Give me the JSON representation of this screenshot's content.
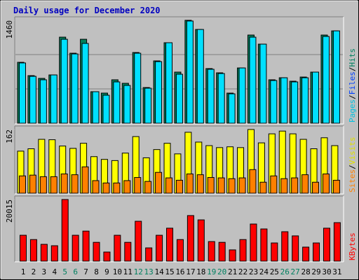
{
  "chart_data": [
    {
      "type": "bar",
      "title": "Daily usage for December 2020",
      "ylim": [
        0,
        1460
      ],
      "yticks": [
        1460
      ],
      "y_label_parts": [
        {
          "text": "Pages",
          "color": "#00c0e0"
        },
        {
          "text": "/",
          "color": "#000000"
        },
        {
          "text": "Files",
          "color": "#0040ff"
        },
        {
          "text": "/",
          "color": "#000000"
        },
        {
          "text": "Hits",
          "color": "#008060"
        }
      ],
      "series": [
        {
          "name": "Hits",
          "color": "#00805c",
          "values": [
            864,
            675,
            636,
            685,
            1221,
            993,
            1191,
            447,
            427,
            616,
            566,
            1003,
            506,
            884,
            1142,
            725,
            1460,
            1330,
            775,
            715,
            427,
            784,
            1251,
            1122,
            616,
            645,
            596,
            655,
            725,
            1251,
            1310
          ]
        },
        {
          "name": "Pages",
          "color": "#00e0ff",
          "values": [
            855,
            665,
            616,
            685,
            1191,
            983,
            1132,
            447,
            397,
            586,
            536,
            993,
            497,
            874,
            1142,
            695,
            1450,
            1330,
            765,
            705,
            417,
            784,
            1221,
            1122,
            606,
            645,
            586,
            645,
            725,
            1231,
            1310
          ]
        }
      ]
    },
    {
      "type": "bar",
      "ylim": [
        0,
        162
      ],
      "yticks": [
        162
      ],
      "y_label_parts": [
        {
          "text": "Sites",
          "color": "#ff8000"
        },
        {
          "text": "/",
          "color": "#000000"
        },
        {
          "text": "Visits",
          "color": "#e0e000"
        }
      ],
      "series": [
        {
          "name": "Visits",
          "color": "#ffff00",
          "values": [
            107,
            113,
            137,
            136,
            120,
            114,
            127,
            93,
            86,
            83,
            102,
            144,
            90,
            111,
            127,
            100,
            155,
            130,
            121,
            116,
            118,
            116,
            162,
            128,
            151,
            158,
            151,
            137,
            113,
            141,
            121
          ]
        },
        {
          "name": "Sites",
          "color": "#ff8000",
          "values": [
            44,
            46,
            42,
            42,
            49,
            47,
            67,
            32,
            26,
            26,
            32,
            40,
            30,
            53,
            39,
            33,
            49,
            47,
            40,
            39,
            37,
            39,
            60,
            28,
            44,
            37,
            39,
            47,
            28,
            49,
            33
          ]
        }
      ]
    },
    {
      "type": "bar",
      "ylim": [
        0,
        20015
      ],
      "yticks": [
        20015
      ],
      "y_label_parts": [
        {
          "text": "KBytes",
          "color": "#ff0000"
        }
      ],
      "categories": [
        "1",
        "2",
        "3",
        "4",
        "5",
        "6",
        "7",
        "8",
        "9",
        "10",
        "11",
        "12",
        "13",
        "14",
        "15",
        "16",
        "17",
        "18",
        "19",
        "20",
        "21",
        "22",
        "23",
        "24",
        "25",
        "26",
        "27",
        "28",
        "29",
        "30",
        "31"
      ],
      "highlight": [
        4,
        5,
        11,
        12,
        18,
        19,
        25,
        26
      ],
      "highlight_color": "#008060",
      "series": [
        {
          "name": "KBytes",
          "color": "#ff0000",
          "values": [
            8400,
            7000,
            5450,
            5000,
            20015,
            8400,
            9750,
            6100,
            2950,
            8400,
            6100,
            12950,
            4300,
            8400,
            10700,
            7000,
            14800,
            13400,
            6350,
            6100,
            3650,
            7000,
            12050,
            10450,
            5900,
            9550,
            8200,
            4550,
            5900,
            10700,
            12500
          ]
        }
      ]
    }
  ]
}
